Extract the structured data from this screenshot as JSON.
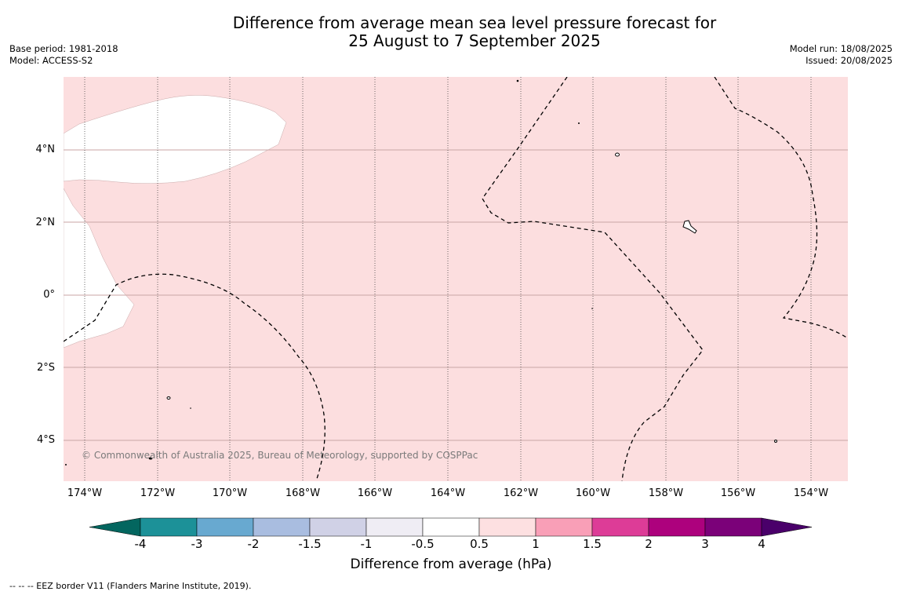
{
  "title": {
    "line1": "Difference from average mean sea level pressure forecast for",
    "line2": "25 August to 7 September 2025"
  },
  "meta_left": {
    "base_period": "Base period: 1981-2018",
    "model": "Model: ACCESS-S2"
  },
  "meta_right": {
    "model_run": "Model run: 18/08/2025",
    "issued": "Issued: 20/08/2025"
  },
  "map": {
    "lat_labels": [
      "4°N",
      "2°N",
      "0°",
      "2°S",
      "4°S"
    ],
    "lon_labels": [
      "174°W",
      "172°W",
      "170°W",
      "168°W",
      "166°W",
      "164°W",
      "162°W",
      "160°W",
      "158°W",
      "156°W",
      "154°W"
    ],
    "copyright": "© Commonwealth of Australia 2025, Bureau of Meteorology, supported by COSPPac",
    "fill_colors": {
      "anomaly_0_5_to_1": "#fcdedf",
      "anomaly_neutral": "#ffffff"
    }
  },
  "colorbar": {
    "ticks": [
      "-4",
      "-3",
      "-2",
      "-1.5",
      "-1",
      "-0.5",
      "0.5",
      "1",
      "1.5",
      "2",
      "3",
      "4"
    ],
    "colors": [
      "#03665f",
      "#1c9198",
      "#68a9d0",
      "#a9bde0",
      "#d0d1e6",
      "#efedf4",
      "#ffffff",
      "#fde0e1",
      "#f99fb7",
      "#dd3c97",
      "#ad017d",
      "#7b0179",
      "#4a006a"
    ],
    "title": "Difference from average (hPa)"
  },
  "legend_note": "--  --  -- EEZ border V11 (Flanders Marine Institute, 2019)."
}
